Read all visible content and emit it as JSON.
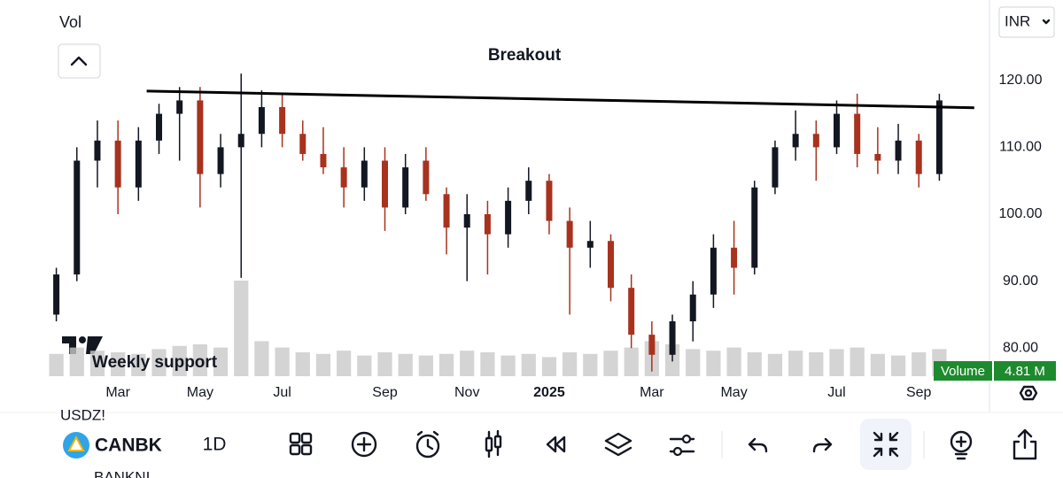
{
  "chart_data": {
    "type": "candlestick",
    "categories": [
      null,
      null,
      null,
      "Mar",
      null,
      null,
      null,
      "May",
      null,
      null,
      null,
      "Jul",
      null,
      null,
      null,
      null,
      "Sep",
      null,
      null,
      null,
      "Nov",
      null,
      null,
      null,
      "2025",
      null,
      null,
      null,
      null,
      "Mar",
      null,
      null,
      null,
      "May",
      null,
      null,
      null,
      null,
      "Jul",
      null,
      null,
      null,
      "Sep",
      null
    ],
    "open": [
      85,
      91,
      108,
      111,
      104,
      111,
      115,
      117,
      106,
      110,
      112,
      116,
      112,
      109,
      107,
      104,
      108,
      101,
      108,
      103,
      98,
      100,
      97,
      102,
      105,
      99,
      95,
      96,
      89,
      82,
      79,
      84,
      88,
      95,
      92,
      104,
      110,
      112,
      110,
      115,
      109,
      108,
      111,
      106
    ],
    "high": [
      92,
      110,
      114,
      114,
      113,
      116.5,
      119,
      119,
      112,
      121,
      118.5,
      118,
      114,
      113,
      110,
      110,
      110,
      109,
      110,
      104,
      103,
      102,
      104,
      107,
      106,
      101,
      99,
      97,
      91,
      84,
      85,
      90,
      97,
      99,
      105,
      111,
      115.5,
      114,
      117,
      118,
      113,
      113.5,
      112,
      118
    ],
    "low": [
      84,
      90,
      104,
      100,
      102,
      109,
      108,
      101,
      104,
      90.5,
      110,
      110,
      108,
      106,
      101,
      102,
      97.5,
      100,
      102,
      94,
      90,
      91,
      95,
      100,
      97,
      85,
      92,
      87,
      80,
      76.5,
      78,
      81,
      86,
      88,
      91,
      103,
      108,
      105,
      109,
      107,
      106,
      106,
      104,
      105
    ],
    "close": [
      91,
      108,
      111,
      104,
      111,
      115,
      117,
      106,
      110,
      112,
      116,
      112,
      109,
      107,
      104,
      108,
      101,
      107,
      103,
      98,
      100,
      97,
      102,
      105,
      99,
      95,
      96,
      89,
      82,
      79,
      84,
      88,
      95,
      92,
      104,
      110,
      112,
      110,
      115,
      109,
      108,
      111,
      106,
      117
    ],
    "volume": [
      14,
      18,
      16,
      15,
      14,
      17,
      19,
      20,
      18,
      60,
      22,
      18,
      15,
      14,
      16,
      13,
      15,
      14,
      13,
      14,
      16,
      15,
      13,
      14,
      12,
      15,
      14,
      16,
      18,
      22,
      20,
      17,
      16,
      18,
      15,
      14,
      16,
      15,
      17,
      18,
      14,
      13,
      15,
      17
    ],
    "up_color": "#131722",
    "down_color": "#a8321e",
    "volume_color": "#c9c9c9",
    "ylim": [
      75.8,
      132
    ],
    "yticks": [
      {
        "value": 80,
        "label": "80.00"
      },
      {
        "value": 90,
        "label": "90.00"
      },
      {
        "value": 100,
        "label": "100.00"
      },
      {
        "value": 110,
        "label": "110.00"
      },
      {
        "value": 120,
        "label": "120.00"
      }
    ],
    "grid": false,
    "currency": "INR",
    "volume_title": "Vol",
    "volume_badge": {
      "name": "Volume",
      "label": "4.81 M"
    },
    "trendline": {
      "label": "Breakout",
      "start": [
        4.4,
        118.4
      ],
      "end": [
        44.7,
        115.9
      ]
    },
    "annotations": [
      "Weekly support"
    ]
  },
  "toolbar": {
    "symbol": "CANBK",
    "interval": "1D",
    "watchlist": [
      "USDZ!",
      "BANKNI"
    ]
  }
}
